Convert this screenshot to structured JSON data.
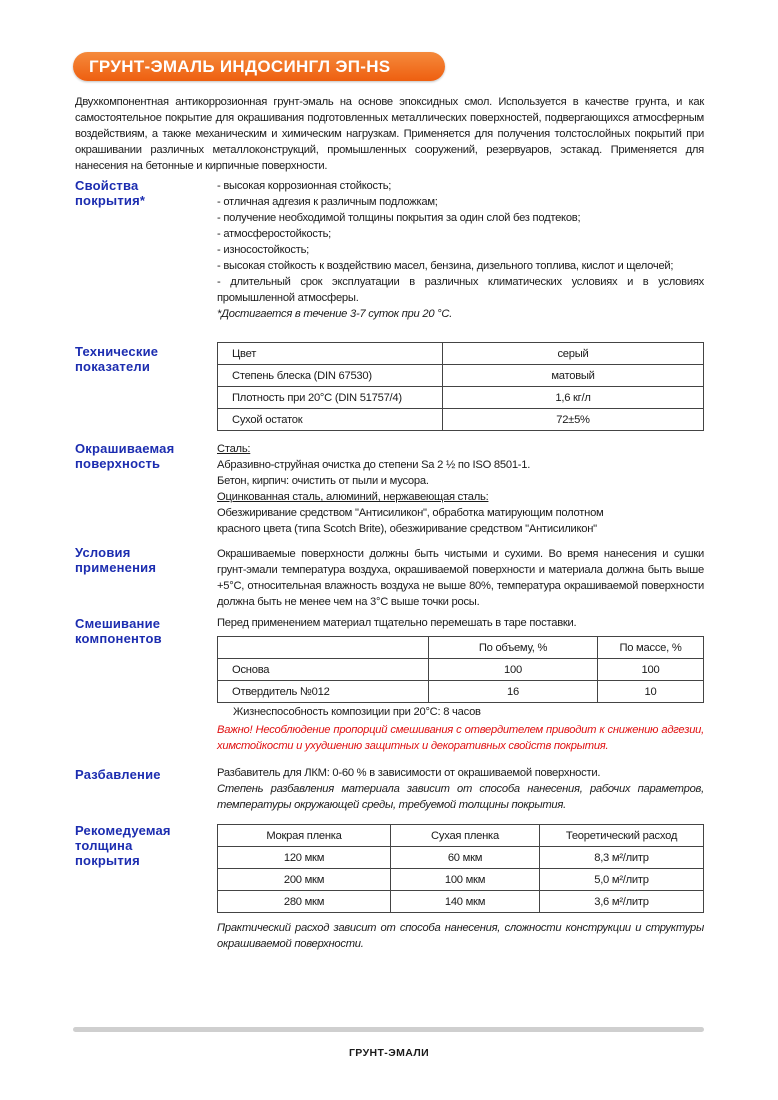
{
  "title": "ГРУНТ-ЭМАЛЬ ИНДОСИНГЛ ЭП-HS",
  "intro": "Двухкомпонентная антикоррозионная грунт-эмаль на основе эпоксидных смол. Используется в качестве грунта, и как самостоятельное покрытие для окрашивания подготовленных металлических поверхностей, подвергающихся атмосферным воздействиям, а также механическим и химическим нагрузкам. Применяется для получения толстослойных покрытий при окрашивании различных металлоконструкций, промышленных сооружений, резервуаров, эстакад. Применяется для нанесения на бетонные и кирпичные поверхности.",
  "properties": {
    "label": [
      "Свойства",
      "покрытия*"
    ],
    "items": [
      "- высокая коррозионная стойкость;",
      "- отличная адгезия к различным подложкам;",
      "- получение необходимой толщины покрытия за один слой без подтеков;",
      "- атмосферостойкость;",
      "- износостойкость;",
      "- высокая стойкость к воздействию масел, бензина, дизельного топлива, кислот и щелочей;",
      "- длительный срок эксплуатации в различных климатических условиях и в условиях промышленной атмосферы."
    ],
    "note": "*Достигается в течение 3-7 суток при 20 °C."
  },
  "technical": {
    "label": [
      "Технические",
      "показатели"
    ],
    "rows": [
      [
        "Цвет",
        "серый"
      ],
      [
        "Степень блеска (DIN 67530)",
        "матовый"
      ],
      [
        "Плотность при 20°C (DIN 51757/4)",
        "1,6 кг/л"
      ],
      [
        "Сухой остаток",
        "72±5%"
      ]
    ]
  },
  "surface": {
    "label": [
      "Окрашиваемая",
      "поверхность"
    ],
    "steel_heading": "Сталь:",
    "steel_text": "Абразивно-струйная очистка до степени Sa 2 ½ по ISO 8501-1.",
    "concrete_text": "Бетон,  кирпич: очистить от пыли и мусора.",
    "galv_heading": "Оцинкованная сталь, алюминий, нержавеющая сталь:",
    "galv_text": [
      "Обезжиривание средством \"Антисиликон\",  обработка матирующим полотном",
      "красного цвета (типа Scotch Brite),  обезжиривание средством \"Антисиликон\""
    ]
  },
  "conditions": {
    "label": [
      "Условия",
      "применения"
    ],
    "text": "Окрашиваемые поверхности должны быть чистыми и сухими. Во время нанесения и сушки грунт-эмали температура воздуха, окрашиваемой поверхности и материала должна быть выше +5°C, относительная влажность воздуха не выше 80%, температура окрашиваемой поверхности должна быть не менее чем на 3°C выше точки росы."
  },
  "mixing": {
    "label": [
      "Смешивание",
      "компонентов"
    ],
    "intro": "Перед применением материал тщательно перемешать в таре поставки.",
    "headers": [
      "",
      "По объему, %",
      "По массе, %"
    ],
    "rows": [
      [
        "Основа",
        "100",
        "100"
      ],
      [
        "Отвердитель №012",
        "16",
        "10"
      ]
    ],
    "potlife": "Жизнеспособность композиции при 20°C: 8 часов",
    "warning": "Важно! Несоблюдение пропорций смешивания с отвердителем приводит к снижению адгезии, химстойкости и ухудшению защитных и декоративных свойств покрытия.",
    "warning_color": "#e01010"
  },
  "dilution": {
    "label": [
      "Разбавление"
    ],
    "text": "Разбавитель для ЛКМ: 0-60 % в зависимости от окрашиваемой поверхности.",
    "note": "Степень разбавления материала зависит от способа нанесения, рабочих параметров, температуры окружающей среды, требуемой толщины покрытия."
  },
  "thickness": {
    "label": [
      "Рекомедуемая",
      "толщина",
      "покрытия"
    ],
    "headers": [
      "Мокрая пленка",
      "Сухая пленка",
      "Теоретический расход"
    ],
    "rows": [
      [
        "120 мкм",
        "60 мкм",
        "8,3 м²/литр"
      ],
      [
        "200 мкм",
        "100 мкм",
        "5,0 м²/литр"
      ],
      [
        "280 мкм",
        "140 мкм",
        "3,6 м²/литр"
      ]
    ],
    "note": "Практический расход зависит от способа нанесения, сложности конструкции и структуры окрашиваемой поверхности."
  },
  "footer": "ГРУНТ-ЭМАЛИ",
  "colors": {
    "title_bg": "#ee5f10",
    "label": "#1c2db0"
  }
}
